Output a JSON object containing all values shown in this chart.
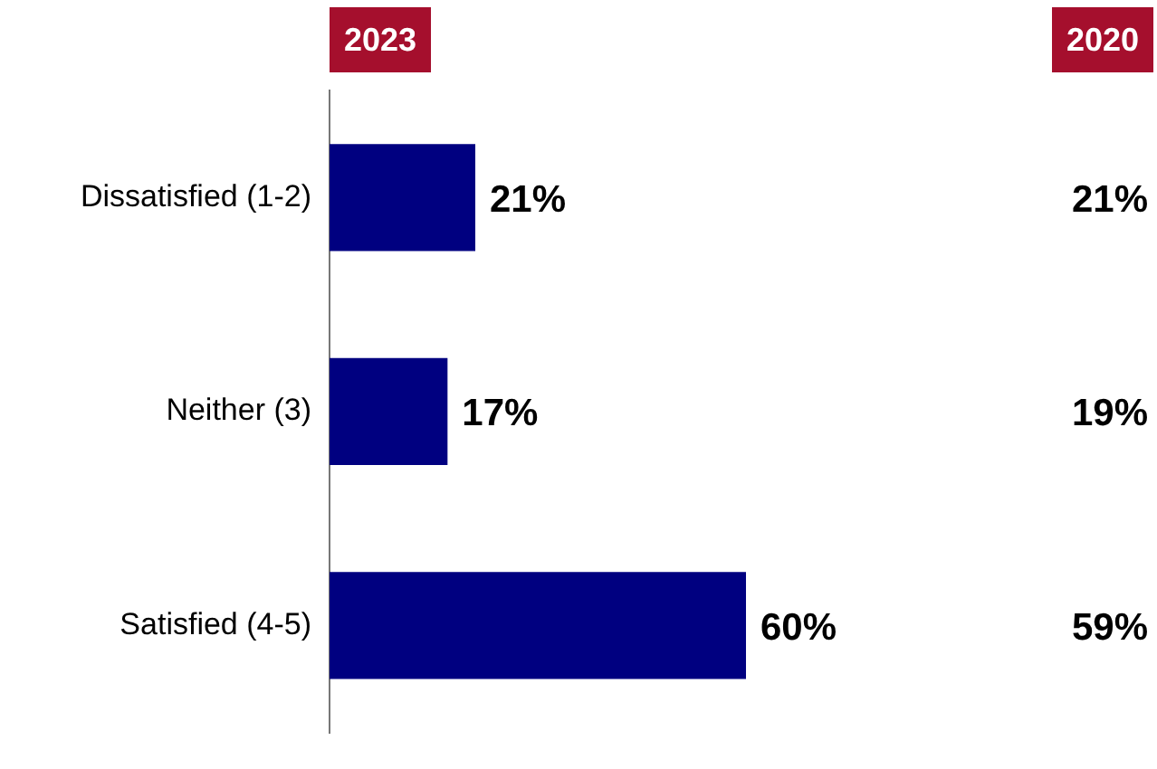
{
  "chart_data": {
    "type": "bar",
    "orientation": "horizontal",
    "categories": [
      "Dissatisfied (1-2)",
      "Neither (3)",
      "Satisfied (4-5)"
    ],
    "series": [
      {
        "name": "2023",
        "color": "#000080",
        "values": [
          21,
          17,
          60
        ],
        "value_labels": [
          "21%",
          "17%",
          "60%"
        ]
      }
    ],
    "grid": false,
    "legend": false,
    "annotations": [
      "2020",
      "21%",
      "19%",
      "59%"
    ]
  }
}
